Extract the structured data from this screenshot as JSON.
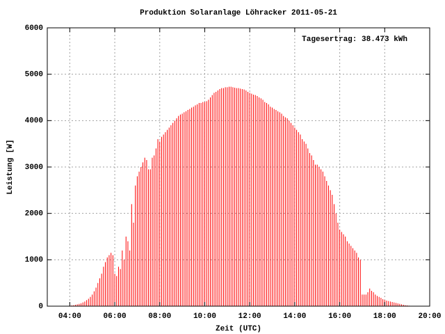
{
  "chart_data": {
    "type": "impulse",
    "title": "Produktion Solaranlage Löhracker 2011-05-21",
    "xlabel": "Zeit (UTC)",
    "ylabel": "Leistung [W]",
    "annotation": "Tagesertrag: 38.473 kWh",
    "color": "#ff0000",
    "grid": true,
    "xlim": [
      "03:00",
      "20:00"
    ],
    "xticks": [
      "04:00",
      "06:00",
      "08:00",
      "10:00",
      "12:00",
      "14:00",
      "16:00",
      "18:00",
      "20:00"
    ],
    "ylim": [
      0,
      6000
    ],
    "yticks": [
      0,
      1000,
      2000,
      3000,
      4000,
      5000,
      6000
    ],
    "x": [
      "04:00",
      "04:05",
      "04:10",
      "04:15",
      "04:20",
      "04:25",
      "04:30",
      "04:35",
      "04:40",
      "04:45",
      "04:50",
      "04:55",
      "05:00",
      "05:05",
      "05:10",
      "05:15",
      "05:20",
      "05:25",
      "05:30",
      "05:35",
      "05:40",
      "05:45",
      "05:50",
      "05:55",
      "06:00",
      "06:05",
      "06:10",
      "06:15",
      "06:20",
      "06:25",
      "06:30",
      "06:35",
      "06:40",
      "06:45",
      "06:50",
      "06:55",
      "07:00",
      "07:05",
      "07:10",
      "07:15",
      "07:20",
      "07:25",
      "07:30",
      "07:35",
      "07:40",
      "07:45",
      "07:50",
      "07:55",
      "08:00",
      "08:05",
      "08:10",
      "08:15",
      "08:20",
      "08:25",
      "08:30",
      "08:35",
      "08:40",
      "08:45",
      "08:50",
      "08:55",
      "09:00",
      "09:05",
      "09:10",
      "09:15",
      "09:20",
      "09:25",
      "09:30",
      "09:35",
      "09:40",
      "09:45",
      "09:50",
      "09:55",
      "10:00",
      "10:05",
      "10:10",
      "10:15",
      "10:20",
      "10:25",
      "10:30",
      "10:35",
      "10:40",
      "10:45",
      "10:50",
      "10:55",
      "11:00",
      "11:05",
      "11:10",
      "11:15",
      "11:20",
      "11:25",
      "11:30",
      "11:35",
      "11:40",
      "11:45",
      "11:50",
      "11:55",
      "12:00",
      "12:05",
      "12:10",
      "12:15",
      "12:20",
      "12:25",
      "12:30",
      "12:35",
      "12:40",
      "12:45",
      "12:50",
      "12:55",
      "13:00",
      "13:05",
      "13:10",
      "13:15",
      "13:20",
      "13:25",
      "13:30",
      "13:35",
      "13:40",
      "13:45",
      "13:50",
      "13:55",
      "14:00",
      "14:05",
      "14:10",
      "14:15",
      "14:20",
      "14:25",
      "14:30",
      "14:35",
      "14:40",
      "14:45",
      "14:50",
      "14:55",
      "15:00",
      "15:05",
      "15:10",
      "15:15",
      "15:20",
      "15:25",
      "15:30",
      "15:35",
      "15:40",
      "15:45",
      "15:50",
      "15:55",
      "16:00",
      "16:05",
      "16:10",
      "16:15",
      "16:20",
      "16:25",
      "16:30",
      "16:35",
      "16:40",
      "16:45",
      "16:50",
      "16:55",
      "17:00",
      "17:05",
      "17:10",
      "17:15",
      "17:20",
      "17:25",
      "17:30",
      "17:35",
      "17:40",
      "17:45",
      "17:50",
      "17:55",
      "18:00",
      "18:05",
      "18:10",
      "18:15",
      "18:20",
      "18:25",
      "18:30",
      "18:35",
      "18:40",
      "18:45",
      "18:50",
      "18:55",
      "19:00",
      "19:05"
    ],
    "values": [
      10,
      15,
      20,
      30,
      40,
      50,
      60,
      80,
      100,
      130,
      160,
      200,
      250,
      320,
      400,
      500,
      600,
      700,
      850,
      950,
      1050,
      1100,
      1150,
      1100,
      700,
      650,
      850,
      800,
      1200,
      1000,
      1500,
      1400,
      1200,
      2200,
      1800,
      2600,
      2800,
      2900,
      3000,
      3100,
      3200,
      3150,
      2950,
      2950,
      3200,
      3250,
      3400,
      3600,
      3550,
      3650,
      3700,
      3750,
      3800,
      3850,
      3900,
      3950,
      4000,
      4050,
      4100,
      4130,
      4150,
      4180,
      4200,
      4230,
      4250,
      4280,
      4300,
      4330,
      4350,
      4380,
      4380,
      4400,
      4400,
      4420,
      4450,
      4500,
      4550,
      4600,
      4620,
      4650,
      4680,
      4700,
      4700,
      4720,
      4720,
      4730,
      4730,
      4720,
      4710,
      4700,
      4700,
      4690,
      4680,
      4670,
      4650,
      4620,
      4600,
      4580,
      4560,
      4550,
      4530,
      4500,
      4480,
      4450,
      4400,
      4380,
      4350,
      4300,
      4280,
      4250,
      4230,
      4200,
      4180,
      4150,
      4100,
      4070,
      4050,
      4000,
      3950,
      3900,
      3850,
      3800,
      3750,
      3700,
      3600,
      3550,
      3500,
      3400,
      3300,
      3250,
      3150,
      3050,
      3050,
      3000,
      2950,
      2900,
      2800,
      2700,
      2600,
      2500,
      2400,
      2200,
      2000,
      1800,
      1650,
      1600,
      1550,
      1500,
      1400,
      1350,
      1300,
      1250,
      1200,
      1150,
      1050,
      1000,
      250,
      250,
      250,
      300,
      380,
      330,
      300,
      250,
      220,
      200,
      180,
      150,
      130,
      120,
      110,
      100,
      90,
      80,
      70,
      60,
      50,
      40,
      30,
      20,
      15,
      10
    ]
  }
}
